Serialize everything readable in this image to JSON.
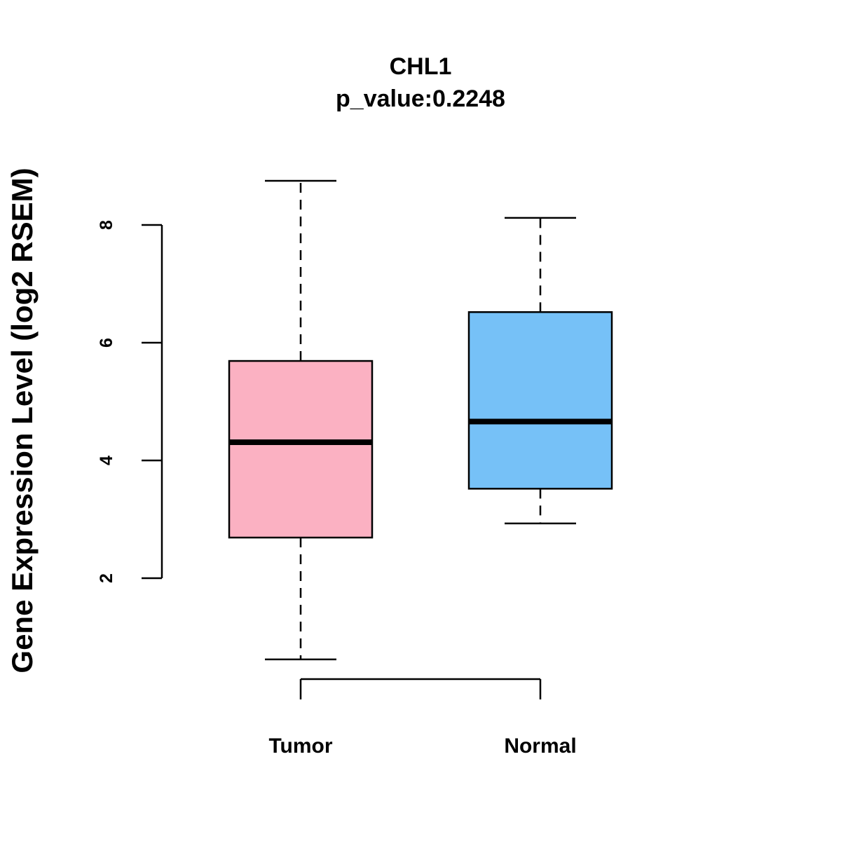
{
  "chart_data": {
    "type": "boxplot",
    "title": "CHL1",
    "subtitle": "p_value:0.2248",
    "xlabel": "",
    "ylabel": "Gene Expression Level (log2 RSEM)",
    "yticks": [
      2,
      4,
      6,
      8
    ],
    "ytick_labels": [
      "2",
      "4",
      "6",
      "8"
    ],
    "categories": [
      "Tumor",
      "Normal"
    ],
    "series": [
      {
        "name": "Tumor",
        "whisker_low": 0.62,
        "q1": 2.69,
        "median": 4.31,
        "q3": 5.69,
        "whisker_high": 8.75,
        "fill": "#fbb1c2"
      },
      {
        "name": "Normal",
        "whisker_low": 2.93,
        "q1": 3.52,
        "median": 4.66,
        "q3": 6.52,
        "whisker_high": 8.12,
        "fill": "#76c1f7"
      }
    ],
    "grid": false,
    "legend": "none"
  },
  "colors": {
    "tumor_fill": "#fbb1c2",
    "normal_fill": "#76c1f7",
    "line": "#000000"
  }
}
